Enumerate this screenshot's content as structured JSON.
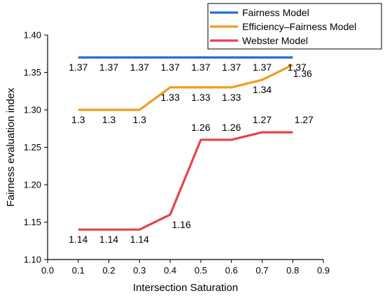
{
  "chart_data": {
    "type": "line",
    "title": "",
    "xlabel": "Intersection Saturation",
    "ylabel": "Fairness evaluation index",
    "xlim": [
      0.0,
      0.9
    ],
    "ylim": [
      1.1,
      1.4
    ],
    "xticks": [
      "0.0",
      "0.1",
      "0.2",
      "0.3",
      "0.4",
      "0.5",
      "0.6",
      "0.7",
      "0.8",
      "0.9"
    ],
    "yticks": [
      "1.10",
      "1.15",
      "1.20",
      "1.25",
      "1.30",
      "1.35",
      "1.40"
    ],
    "x": [
      0.1,
      0.2,
      0.3,
      0.4,
      0.5,
      0.6,
      0.7,
      0.8
    ],
    "grid": false,
    "legend_position": "top-right",
    "series": [
      {
        "name": "Fairness Model",
        "color": "#1f6fd1",
        "values": [
          1.37,
          1.37,
          1.37,
          1.37,
          1.37,
          1.37,
          1.37,
          1.37
        ],
        "labels": [
          "1.37",
          "1.37",
          "1.37",
          "1.37",
          "1.37",
          "1.37",
          "1.37",
          "1.37"
        ]
      },
      {
        "name": "Efficiency–Fairness Model",
        "color": "#f39a1e",
        "values": [
          1.3,
          1.3,
          1.3,
          1.33,
          1.33,
          1.33,
          1.34,
          1.36
        ],
        "labels": [
          "1.3",
          "1.3",
          "1.3",
          "1.33",
          "1.33",
          "1.33",
          "1.34",
          "1.36"
        ]
      },
      {
        "name": "Webster Model",
        "color": "#e8424a",
        "values": [
          1.14,
          1.14,
          1.14,
          1.16,
          1.26,
          1.26,
          1.27,
          1.27
        ],
        "labels": [
          "1.14",
          "1.14",
          "1.14",
          "1.16",
          "1.26",
          "1.26",
          "1.27",
          "1.27"
        ]
      }
    ]
  }
}
